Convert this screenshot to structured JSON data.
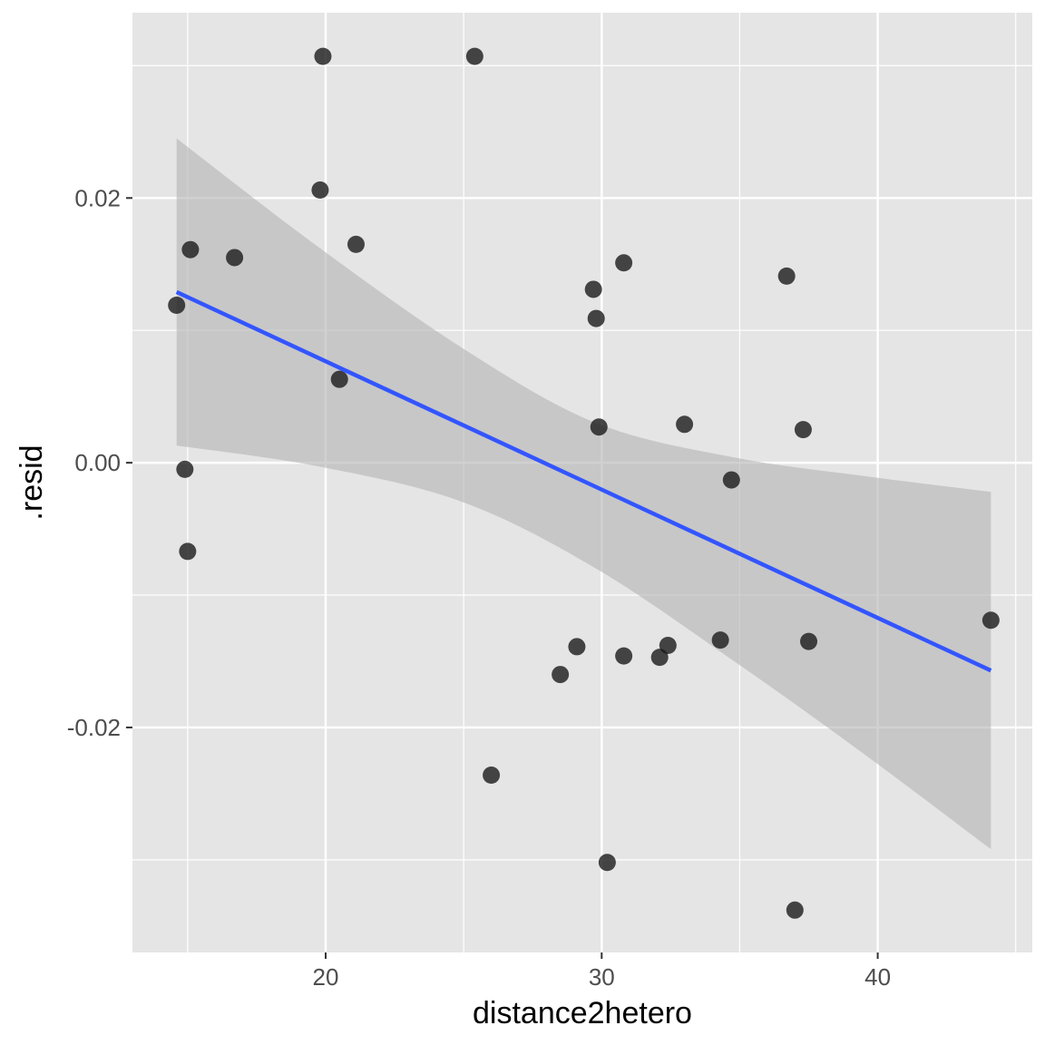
{
  "chart_data": {
    "type": "scatter",
    "xlabel": "distance2hetero",
    "ylabel": ".resid",
    "xlim": [
      13.0,
      45.6
    ],
    "ylim": [
      -0.037,
      0.034
    ],
    "x_ticks": [
      20,
      30,
      40
    ],
    "x_tick_labels": [
      "20",
      "30",
      "40"
    ],
    "x_minor_ticks": [
      15,
      25,
      35,
      45
    ],
    "y_ticks": [
      -0.02,
      0.0,
      0.02
    ],
    "y_tick_labels": [
      "-0.02",
      "0.00",
      "0.02"
    ],
    "y_minor_ticks": [
      -0.03,
      -0.01,
      0.01,
      0.03
    ],
    "grid": true,
    "colors": {
      "panel_background": "#e5e5e5",
      "grid_line": "#ffffff",
      "point": "#1a1a1a",
      "fit_line": "#3355ff",
      "ribbon": "#b3b3b3"
    },
    "points": [
      {
        "x": 14.6,
        "y": 0.0119
      },
      {
        "x": 14.9,
        "y": -0.0005
      },
      {
        "x": 15.0,
        "y": -0.0067
      },
      {
        "x": 15.1,
        "y": 0.0161
      },
      {
        "x": 16.7,
        "y": 0.0155
      },
      {
        "x": 19.8,
        "y": 0.0206
      },
      {
        "x": 19.9,
        "y": 0.0307
      },
      {
        "x": 20.5,
        "y": 0.0063
      },
      {
        "x": 21.1,
        "y": 0.0165
      },
      {
        "x": 25.4,
        "y": 0.0307
      },
      {
        "x": 26.0,
        "y": -0.0236
      },
      {
        "x": 28.5,
        "y": -0.016
      },
      {
        "x": 29.1,
        "y": -0.0139
      },
      {
        "x": 29.7,
        "y": 0.0131
      },
      {
        "x": 29.8,
        "y": 0.0109
      },
      {
        "x": 29.9,
        "y": 0.0027
      },
      {
        "x": 30.2,
        "y": -0.0302
      },
      {
        "x": 30.8,
        "y": -0.0146
      },
      {
        "x": 30.8,
        "y": 0.0151
      },
      {
        "x": 32.1,
        "y": -0.0147
      },
      {
        "x": 32.4,
        "y": -0.0138
      },
      {
        "x": 33.0,
        "y": 0.0029
      },
      {
        "x": 34.3,
        "y": -0.0134
      },
      {
        "x": 34.7,
        "y": -0.0013
      },
      {
        "x": 36.7,
        "y": 0.0141
      },
      {
        "x": 37.0,
        "y": -0.0338
      },
      {
        "x": 37.3,
        "y": 0.0025
      },
      {
        "x": 37.5,
        "y": -0.0135
      },
      {
        "x": 44.1,
        "y": -0.0119
      }
    ],
    "fit_line": [
      {
        "x": 14.6,
        "y": 0.0129
      },
      {
        "x": 44.1,
        "y": -0.0157
      }
    ],
    "confidence_band": [
      {
        "x": 14.6,
        "lower": 0.0013,
        "upper": 0.0245
      },
      {
        "x": 19.8,
        "lower": -0.0003,
        "upper": 0.0162
      },
      {
        "x": 25.0,
        "lower": -0.003,
        "upper": 0.0086
      },
      {
        "x": 29.8,
        "lower": -0.008,
        "upper": 0.003
      },
      {
        "x": 34.8,
        "lower": -0.015,
        "upper": 0.0004
      },
      {
        "x": 39.5,
        "lower": -0.022,
        "upper": -0.001
      },
      {
        "x": 44.1,
        "lower": -0.0292,
        "upper": -0.0022
      }
    ]
  }
}
